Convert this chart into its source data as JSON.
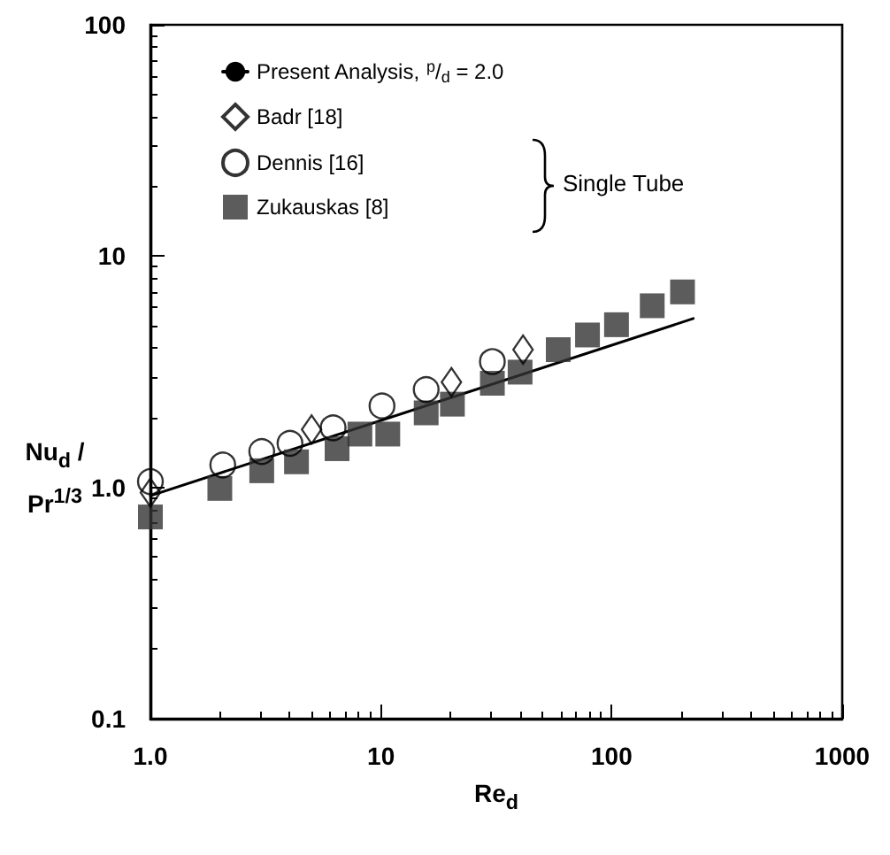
{
  "chart_data": {
    "type": "scatter",
    "xlabel": "Re$_{d}$",
    "ylabel": "Nu$_{d}$ / Pr$^{1/3}$",
    "log": "xy",
    "xlim": [
      1,
      1000
    ],
    "ylim": [
      0.1,
      100
    ],
    "xticks": [
      {
        "value": 1,
        "label": "1.0"
      },
      10,
      100,
      1000
    ],
    "yticks": [
      0.1,
      {
        "value": 1,
        "label": "1.0"
      },
      10,
      100
    ],
    "legend": "top",
    "grid": false,
    "annotations": [
      "Single Tube"
    ],
    "series": [
      {
        "name": "Present Analysis, $^{p}$/$_{d}$ = 2.0",
        "type": "line",
        "color": "#000000",
        "marker": "none",
        "line_style": "solid",
        "x": [
          1,
          226
        ],
        "values": [
          0.92,
          5.37
        ]
      },
      {
        "name": "Badr [18]",
        "color": "#000000",
        "marker": "diamond",
        "x": [
          1,
          5.0,
          20.2,
          41.3
        ],
        "values": [
          0.95,
          1.78,
          2.85,
          3.94
        ]
      },
      {
        "name": "Dennis [16]",
        "color": "#000000",
        "marker": "circle",
        "x": [
          1,
          2.06,
          3.04,
          4.03,
          6.2,
          10.1,
          15.7,
          30.4
        ],
        "values": [
          1.06,
          1.25,
          1.43,
          1.55,
          1.81,
          2.25,
          2.65,
          3.5
        ]
      },
      {
        "name": "Zukauskas [8]",
        "color": "#333333",
        "marker": "square",
        "x": [
          1,
          2.0,
          3.04,
          4.3,
          6.45,
          8.1,
          10.7,
          15.7,
          20.4,
          30.4,
          40.1,
          58.7,
          78.6,
          105,
          150,
          203
        ],
        "values": [
          0.745,
          0.99,
          1.18,
          1.29,
          1.47,
          1.7,
          1.7,
          2.1,
          2.29,
          2.82,
          3.15,
          3.94,
          4.56,
          5.05,
          6.1,
          7.0
        ]
      }
    ]
  }
}
